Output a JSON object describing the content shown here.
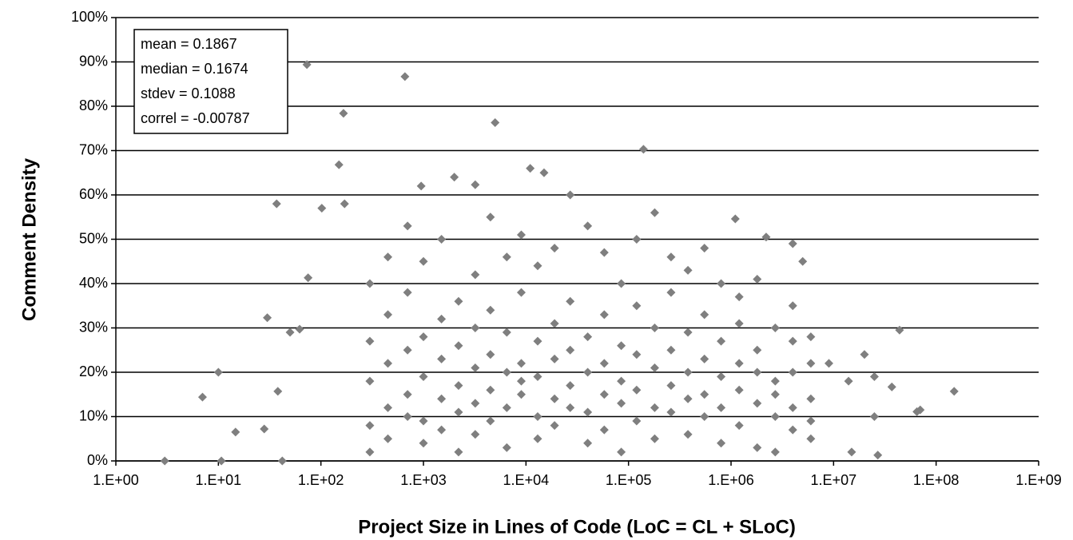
{
  "chart_data": {
    "type": "scatter",
    "x_label": "Project Size in Lines of Code (LoC = CL + SLoC)",
    "y_label": "Comment Density",
    "annotations": [
      "mean = 0.1867",
      "median = 0.1674",
      "stdev = 0.1088",
      "correl = -0.00787"
    ],
    "color": "#7f7f7f",
    "xscale": "log",
    "grid": true,
    "xlim": [
      1,
      1000000000
    ],
    "xticks": [
      {
        "value": 1,
        "label": "1.E+00"
      },
      {
        "value": 10,
        "label": "1.E+01"
      },
      {
        "value": 100,
        "label": "1.E+02"
      },
      {
        "value": 1000,
        "label": "1.E+03"
      },
      {
        "value": 10000,
        "label": "1.E+04"
      },
      {
        "value": 100000,
        "label": "1.E+05"
      },
      {
        "value": 1000000,
        "label": "1.E+06"
      },
      {
        "value": 10000000,
        "label": "1.E+07"
      },
      {
        "value": 100000000,
        "label": "1.E+08"
      },
      {
        "value": 1000000000,
        "label": "1.E+09"
      }
    ],
    "ylim": [
      0,
      100
    ],
    "yticks": [
      {
        "value": 0,
        "label": "0%"
      },
      {
        "value": 10,
        "label": "10%"
      },
      {
        "value": 20,
        "label": "20%"
      },
      {
        "value": 30,
        "label": "30%"
      },
      {
        "value": 40,
        "label": "40%"
      },
      {
        "value": 50,
        "label": "50%"
      },
      {
        "value": 60,
        "label": "60%"
      },
      {
        "value": 70,
        "label": "70%"
      },
      {
        "value": 80,
        "label": "80%"
      },
      {
        "value": 90,
        "label": "90%"
      },
      {
        "value": 100,
        "label": "100%"
      }
    ],
    "x": [
      3,
      7,
      10,
      10.7,
      14.7,
      28,
      30,
      37,
      38,
      42,
      50,
      62,
      73,
      75,
      102,
      150,
      166,
      170,
      660,
      950,
      2000,
      3200,
      5000,
      11000,
      15000,
      140000,
      1100000,
      2200000,
      4000000,
      5000000,
      9000000,
      14000000,
      15000000,
      20000000,
      25000000,
      25000000,
      27000000,
      37000000,
      44000000,
      65000000,
      70000000,
      150000000,
      300,
      300,
      300,
      300,
      300,
      450,
      450,
      450,
      450,
      450,
      700,
      700,
      700,
      700,
      700,
      1000,
      1000,
      1000,
      1000,
      1000,
      1500,
      1500,
      1500,
      1500,
      1500,
      2200,
      2200,
      2200,
      2200,
      2200,
      3200,
      3200,
      3200,
      3200,
      3200,
      4500,
      4500,
      4500,
      4500,
      4500,
      6500,
      6500,
      6500,
      6500,
      6500,
      9000,
      9000,
      9000,
      9000,
      9000,
      13000,
      13000,
      13000,
      13000,
      13000,
      19000,
      19000,
      19000,
      19000,
      19000,
      27000,
      27000,
      27000,
      27000,
      27000,
      40000,
      40000,
      40000,
      40000,
      40000,
      58000,
      58000,
      58000,
      58000,
      58000,
      85000,
      85000,
      85000,
      85000,
      85000,
      120000,
      120000,
      120000,
      120000,
      120000,
      180000,
      180000,
      180000,
      180000,
      180000,
      260000,
      260000,
      260000,
      260000,
      260000,
      380000,
      380000,
      380000,
      380000,
      380000,
      550000,
      550000,
      550000,
      550000,
      550000,
      800000,
      800000,
      800000,
      800000,
      800000,
      1200000,
      1200000,
      1200000,
      1200000,
      1200000,
      1800000,
      1800000,
      1800000,
      1800000,
      1800000,
      2700000,
      2700000,
      2700000,
      2700000,
      2700000,
      4000000,
      4000000,
      4000000,
      4000000,
      4000000,
      6000000,
      6000000,
      6000000,
      6000000,
      6000000
    ],
    "values": [
      0,
      14.4,
      20,
      0,
      6.5,
      7.2,
      32.3,
      58,
      15.7,
      0,
      29,
      29.7,
      89.4,
      41.3,
      57,
      66.8,
      78.4,
      58,
      86.7,
      62,
      64,
      62.3,
      76.3,
      66,
      65,
      70.3,
      54.6,
      50.5,
      49,
      45,
      22,
      18,
      2,
      24,
      19,
      10,
      1.3,
      16.7,
      29.5,
      11.1,
      11.5,
      15.7,
      8,
      18,
      27,
      40,
      2,
      12,
      22,
      33,
      5,
      46,
      15,
      25,
      10,
      38,
      53,
      9,
      19,
      28,
      4,
      45,
      14,
      23,
      32,
      7,
      50,
      11,
      17,
      26,
      36,
      2,
      13,
      21,
      30,
      6,
      42,
      16,
      24,
      9,
      34,
      55,
      12,
      20,
      29,
      3,
      46,
      15,
      22,
      18,
      38,
      51,
      10,
      19,
      27,
      5,
      44,
      14,
      23,
      31,
      8,
      48,
      17,
      25,
      12,
      36,
      60,
      11,
      20,
      28,
      4,
      53,
      15,
      22,
      33,
      7,
      47,
      13,
      18,
      26,
      40,
      2,
      16,
      24,
      9,
      35,
      50,
      12,
      21,
      30,
      5,
      56,
      17,
      25,
      11,
      38,
      46,
      14,
      20,
      29,
      6,
      43,
      15,
      23,
      10,
      33,
      48,
      12,
      19,
      27,
      4,
      40,
      16,
      22,
      8,
      31,
      37,
      13,
      20,
      25,
      3,
      41,
      15,
      18,
      10,
      30,
      2,
      12,
      20,
      7,
      27,
      35,
      14,
      9,
      22,
      5,
      28
    ]
  }
}
